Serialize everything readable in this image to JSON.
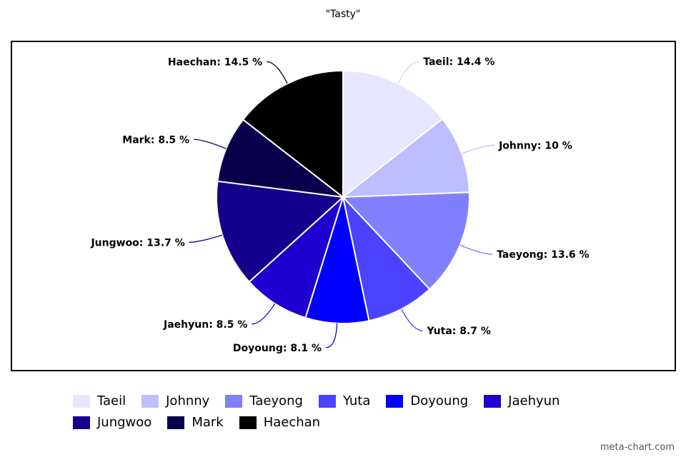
{
  "chart_data": {
    "type": "pie",
    "title": "\"Tasty\"",
    "slices": [
      {
        "name": "Taeil",
        "value": 14.4,
        "label": "Taeil: 14.4 %",
        "color": "#e6e6ff"
      },
      {
        "name": "Johnny",
        "value": 10,
        "label": "Johnny: 10 %",
        "color": "#bdbdff"
      },
      {
        "name": "Taeyong",
        "value": 13.6,
        "label": "Taeyong: 13.6 %",
        "color": "#8080ff"
      },
      {
        "name": "Yuta",
        "value": 8.7,
        "label": "Yuta: 8.7 %",
        "color": "#4a42ff"
      },
      {
        "name": "Doyoung",
        "value": 8.1,
        "label": "Doyoung: 8.1 %",
        "color": "#0000ff"
      },
      {
        "name": "Jaehyun",
        "value": 8.5,
        "label": "Jaehyun: 8.5 %",
        "color": "#1e00d0"
      },
      {
        "name": "Jungwoo",
        "value": 13.7,
        "label": "Jungwoo: 13.7 %",
        "color": "#14008c"
      },
      {
        "name": "Mark",
        "value": 8.5,
        "label": "Mark: 8.5 %",
        "color": "#08004a"
      },
      {
        "name": "Haechan",
        "value": 14.5,
        "label": "Haechan: 14.5 %",
        "color": "#000000"
      }
    ],
    "legend_placement": "bottom"
  },
  "watermark": "meta-chart.com"
}
